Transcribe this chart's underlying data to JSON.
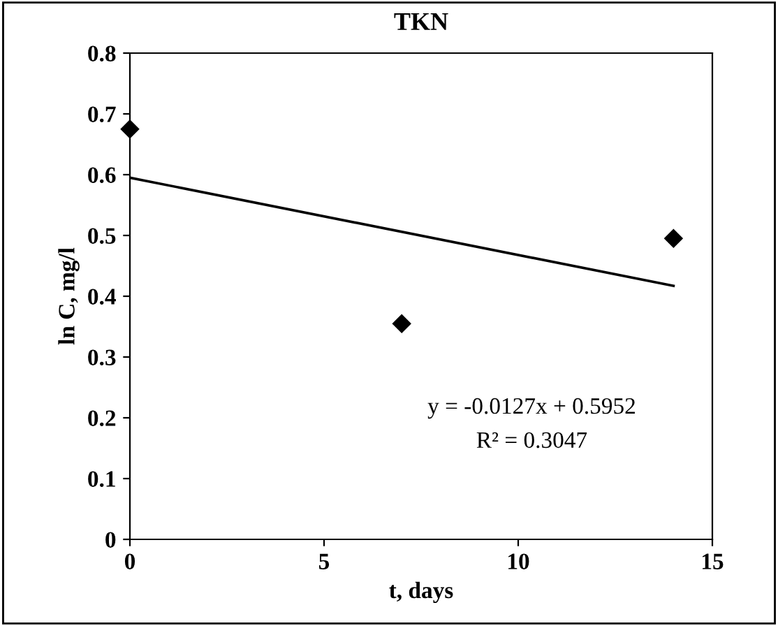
{
  "chart_data": {
    "type": "scatter",
    "title": "TKN",
    "xlabel": "t, days",
    "ylabel": "ln C, mg/l",
    "xlim": [
      0,
      15
    ],
    "xticks": [
      0,
      5,
      10,
      15
    ],
    "ylim": [
      0,
      0.8
    ],
    "yticks": [
      0,
      0.1,
      0.2,
      0.3,
      0.4,
      0.5,
      0.6,
      0.7,
      0.8
    ],
    "grid": false,
    "legend": false,
    "marker": "diamond",
    "series": [
      {
        "color": "#000000",
        "x": [
          0,
          7,
          14
        ],
        "values": [
          0.675,
          0.355,
          0.495
        ]
      },
      {
        "type": "line",
        "color": "#000000",
        "x": [
          0,
          14
        ],
        "values": [
          0.595,
          0.417
        ],
        "line_style": "solid",
        "marker": "none"
      }
    ],
    "annotations": [
      "y = -0.0127x + 0.5952",
      "R² = 0.3047"
    ]
  }
}
